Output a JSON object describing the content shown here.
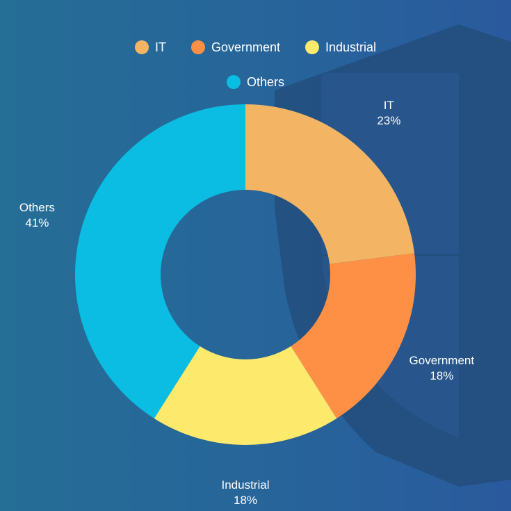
{
  "colors": {
    "background": "#27689a",
    "shield": "#234e7d",
    "label_text": "#ffffff"
  },
  "chart_data": {
    "type": "pie",
    "variant": "donut",
    "title": "",
    "legend_position": "top",
    "categories": [
      "IT",
      "Government",
      "Industrial",
      "Others"
    ],
    "values": [
      23,
      18,
      18,
      41
    ],
    "value_labels": [
      "23%",
      "18%",
      "18%",
      "41%"
    ],
    "colors": [
      "#f3b563",
      "#fd9045",
      "#fdea6c",
      "#0bbde2"
    ]
  }
}
